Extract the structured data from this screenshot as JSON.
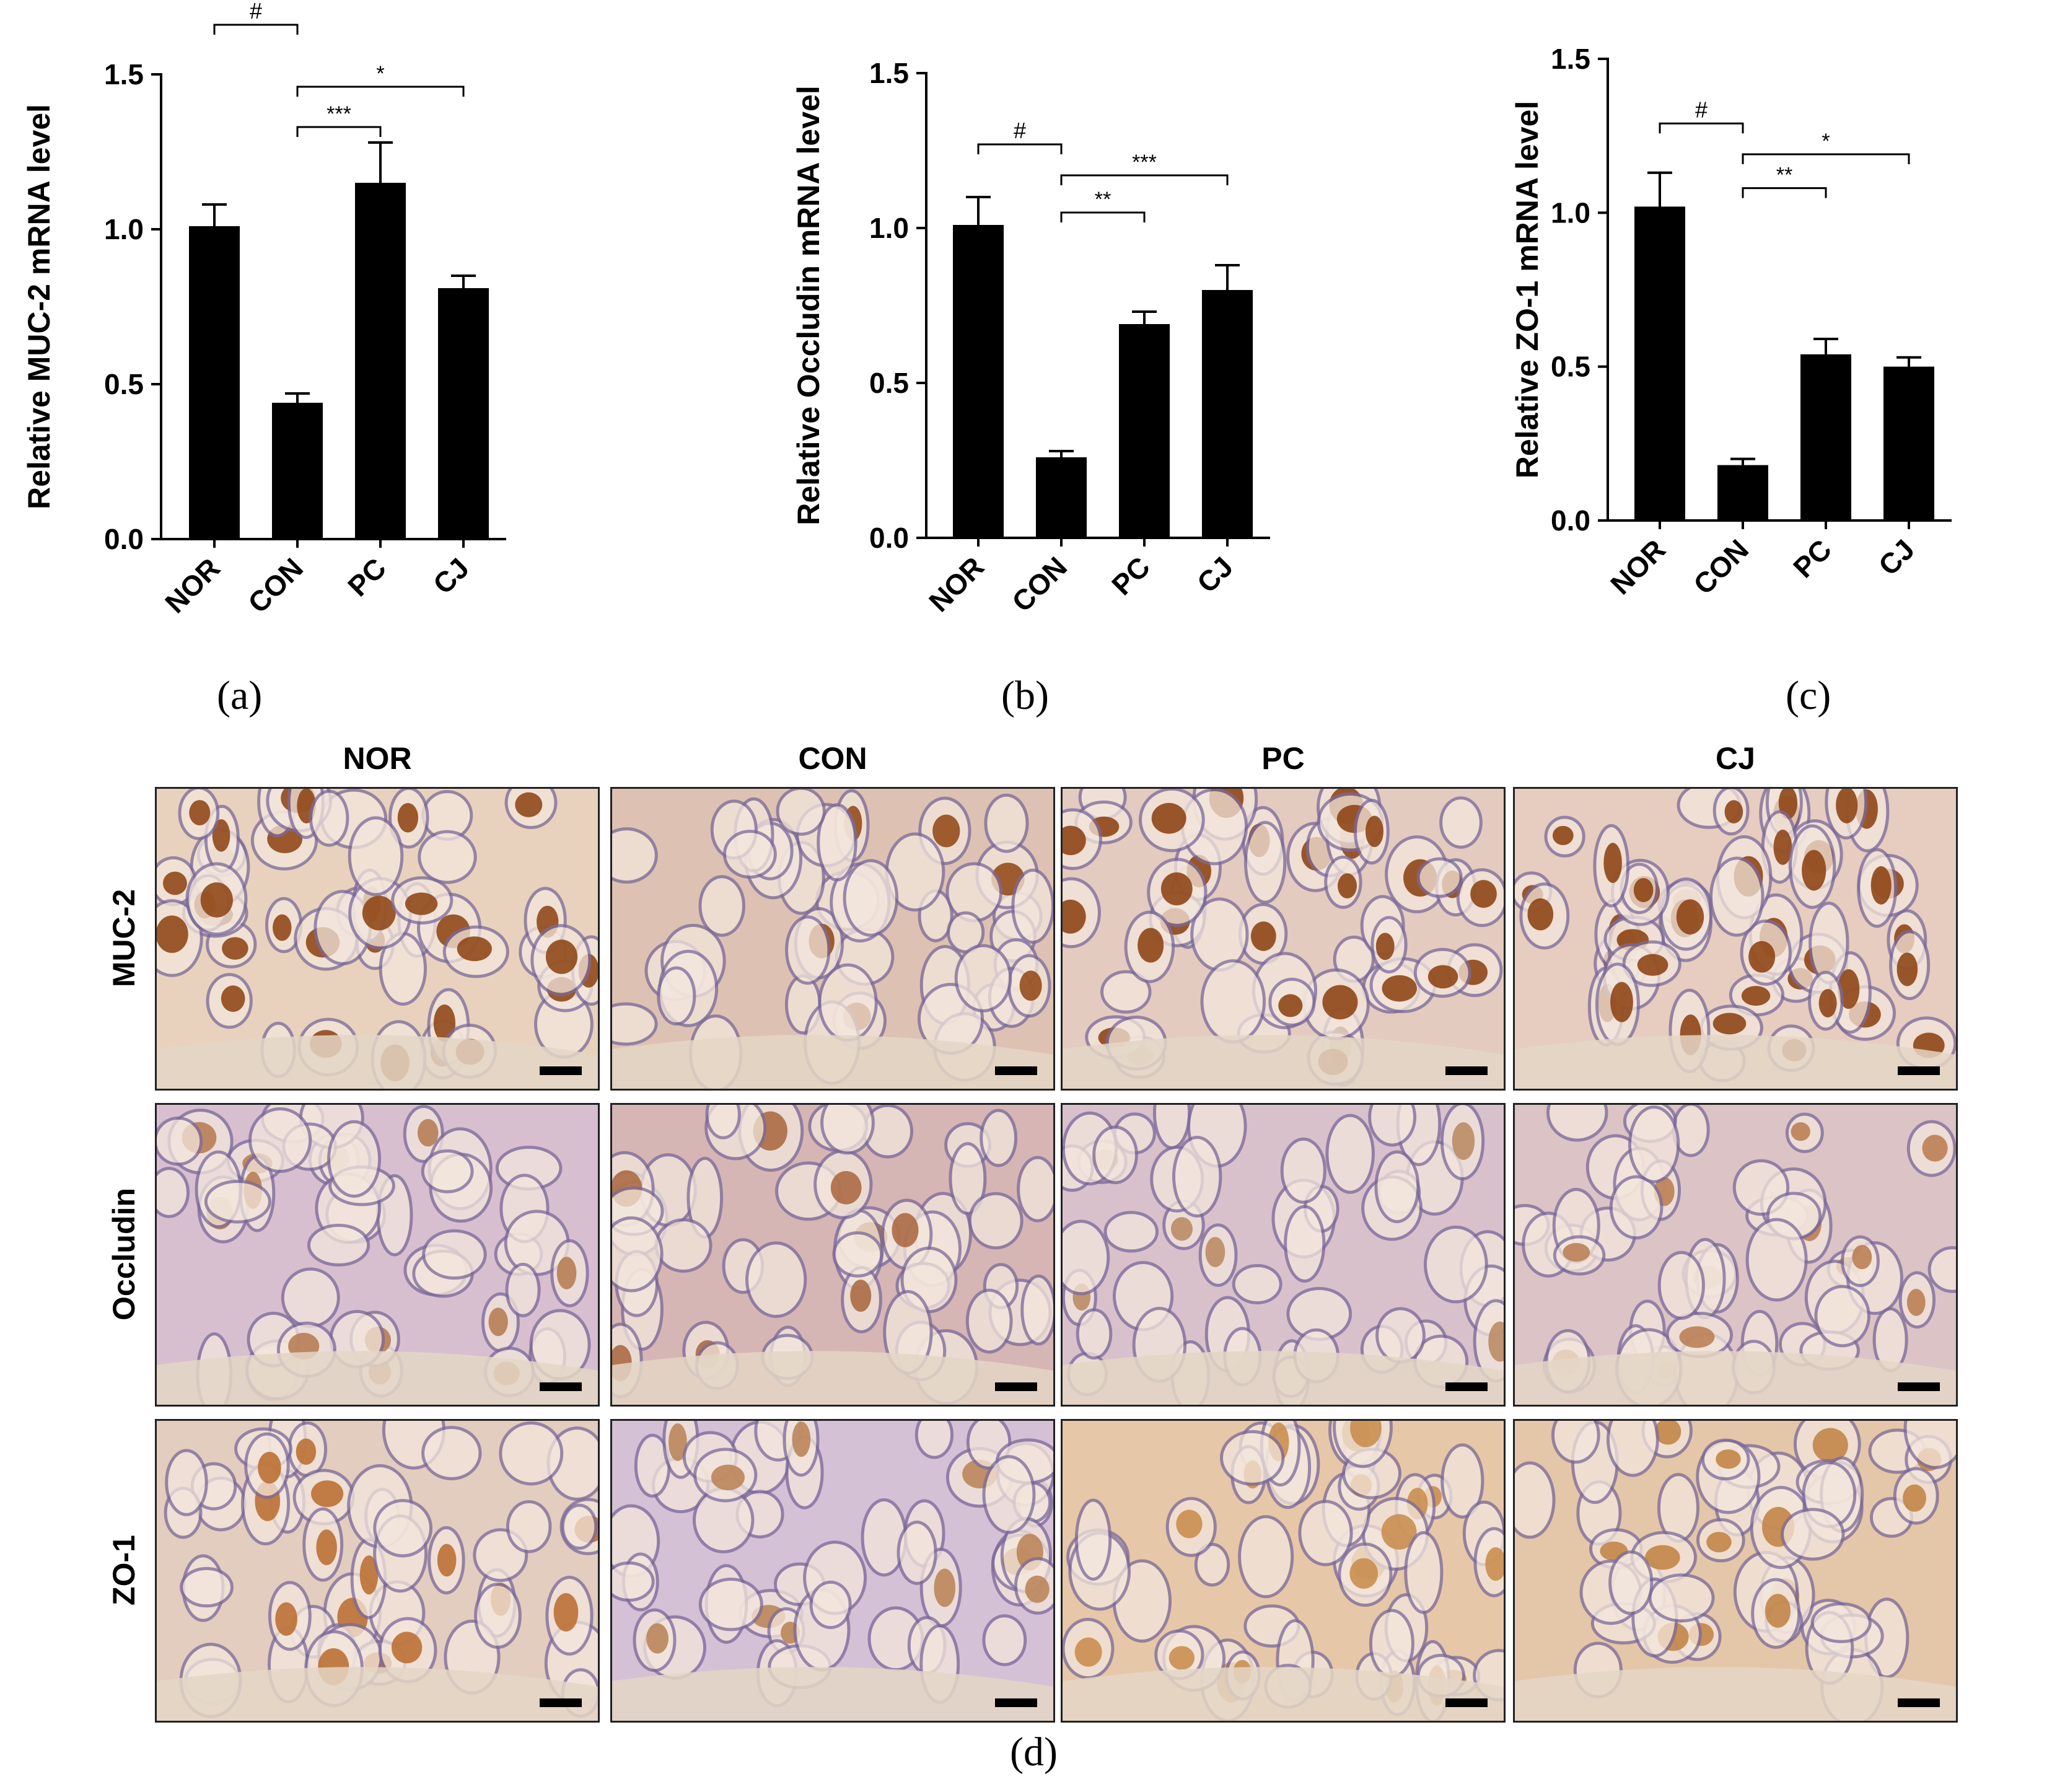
{
  "chart_data": [
    {
      "type": "bar",
      "panel_label": "(a)",
      "ylabel": "Relative MUC-2 mRNA level",
      "categories": [
        "NOR",
        "CON",
        "PC",
        "CJ"
      ],
      "values": [
        1.01,
        0.44,
        1.15,
        0.81
      ],
      "errors": [
        0.07,
        0.03,
        0.13,
        0.04
      ],
      "ylim": [
        0,
        1.5
      ],
      "yticks": [
        "0.0",
        "0.5",
        "1.0",
        "1.5"
      ],
      "significance": [
        {
          "from": 0,
          "to": 1,
          "label": "#",
          "level": 1.66
        },
        {
          "from": 1,
          "to": 3,
          "label": "*",
          "level": 1.46
        },
        {
          "from": 1,
          "to": 2,
          "label": "***",
          "level": 1.33
        }
      ]
    },
    {
      "type": "bar",
      "panel_label": "(b)",
      "ylabel": "Relative Occludin mRNA level",
      "categories": [
        "NOR",
        "CON",
        "PC",
        "CJ"
      ],
      "values": [
        1.01,
        0.26,
        0.69,
        0.8
      ],
      "errors": [
        0.09,
        0.02,
        0.04,
        0.08
      ],
      "ylim": [
        0,
        1.5
      ],
      "yticks": [
        "0.0",
        "0.5",
        "1.0",
        "1.5"
      ],
      "significance": [
        {
          "from": 0,
          "to": 1,
          "label": "#",
          "level": 1.27
        },
        {
          "from": 1,
          "to": 3,
          "label": "***",
          "level": 1.17
        },
        {
          "from": 1,
          "to": 2,
          "label": "**",
          "level": 1.05
        }
      ]
    },
    {
      "type": "bar",
      "panel_label": "(c)",
      "ylabel": "Relative ZO-1 mRNA level",
      "categories": [
        "NOR",
        "CON",
        "PC",
        "CJ"
      ],
      "values": [
        1.02,
        0.18,
        0.54,
        0.5
      ],
      "errors": [
        0.11,
        0.02,
        0.05,
        0.03
      ],
      "ylim": [
        0,
        1.5
      ],
      "yticks": [
        "0.0",
        "0.5",
        "1.0",
        "1.5"
      ],
      "significance": [
        {
          "from": 0,
          "to": 1,
          "label": "#",
          "level": 1.29
        },
        {
          "from": 1,
          "to": 3,
          "label": "*",
          "level": 1.19
        },
        {
          "from": 1,
          "to": 2,
          "label": "**",
          "level": 1.08
        }
      ]
    }
  ],
  "micrographs": {
    "panel_label": "(d)",
    "columns": [
      "NOR",
      "CON",
      "PC",
      "CJ"
    ],
    "rows": [
      {
        "label": "MUC-2",
        "tones": [
          {
            "bg": "#e9d2bd",
            "stain": "#8b3f0e",
            "density": 0.55
          },
          {
            "bg": "#ddc2b3",
            "stain": "#8f4412",
            "density": 0.12
          },
          {
            "bg": "#e4cbc0",
            "stain": "#8a3d0c",
            "density": 0.6
          },
          {
            "bg": "#e6cdbf",
            "stain": "#8a3d0c",
            "density": 0.75
          }
        ]
      },
      {
        "label": "Occludin",
        "tones": [
          {
            "bg": "#d8bfd0",
            "stain": "#b5784d",
            "density": 0.3
          },
          {
            "bg": "#d6b6b4",
            "stain": "#a8643c",
            "density": 0.25
          },
          {
            "bg": "#d9c1cc",
            "stain": "#b8875f",
            "density": 0.2
          },
          {
            "bg": "#dcc3c6",
            "stain": "#b87a4e",
            "density": 0.25
          }
        ]
      },
      {
        "label": "ZO-1",
        "tones": [
          {
            "bg": "#e3cdbf",
            "stain": "#b86a2c",
            "density": 0.35
          },
          {
            "bg": "#d5c1d6",
            "stain": "#b98052",
            "density": 0.18
          },
          {
            "bg": "#e6c8a8",
            "stain": "#c88a48",
            "density": 0.4
          },
          {
            "bg": "#e4c7a9",
            "stain": "#c0803f",
            "density": 0.4
          }
        ]
      }
    ]
  },
  "colors": {
    "bar": "#000000",
    "axis": "#000000"
  }
}
